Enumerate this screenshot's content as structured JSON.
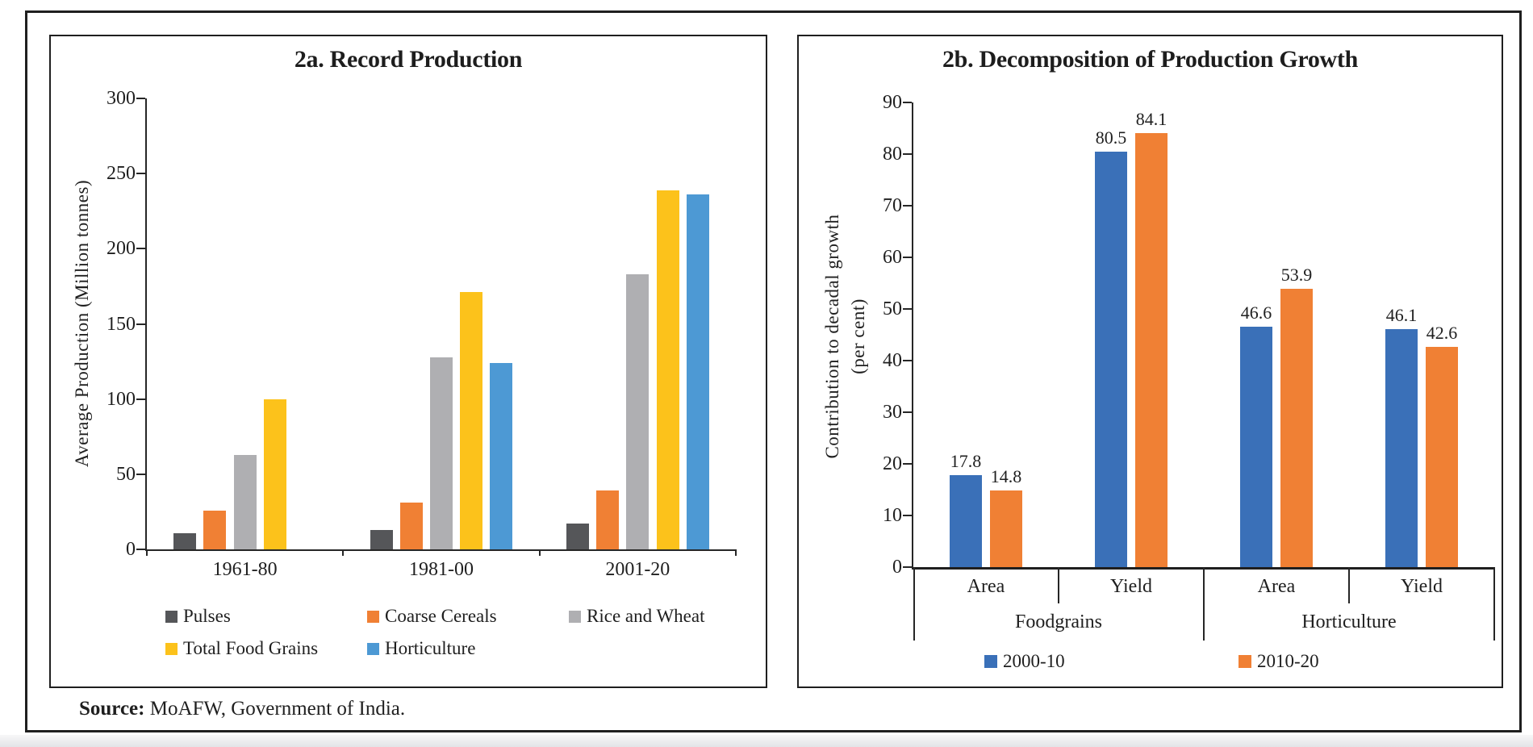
{
  "source": {
    "label": "Source:",
    "text": " MoAFW, Government of India."
  },
  "chart_data": [
    {
      "id": "2a",
      "type": "bar",
      "title": "2a. Record Production",
      "ylabel": "Average Production (Million tonnes)",
      "ylim": [
        0,
        300
      ],
      "ytick_step": 50,
      "yticks": [
        0,
        50,
        100,
        150,
        200,
        250,
        300
      ],
      "categories": [
        "1961-80",
        "1981-00",
        "2001-20"
      ],
      "series": [
        {
          "name": "Pulses",
          "color": "#555659",
          "values": [
            11,
            13,
            17
          ]
        },
        {
          "name": "Coarse Cereals",
          "color": "#F08034",
          "values": [
            26,
            31,
            39
          ]
        },
        {
          "name": "Rice and Wheat",
          "color": "#AFAFB2",
          "values": [
            63,
            128,
            183
          ]
        },
        {
          "name": "Total Food Grains",
          "color": "#FCC21B",
          "values": [
            100,
            171,
            239
          ]
        },
        {
          "name": "Horticulture",
          "color": "#4D99D4",
          "values": [
            null,
            124,
            236
          ]
        }
      ],
      "legend_position": "bottom",
      "grid": false,
      "data_labels": false
    },
    {
      "id": "2b",
      "type": "bar",
      "title": "2b. Decomposition of Production Growth",
      "ylabel": [
        "Contribution to decadal growth",
        "(per cent)"
      ],
      "ylim": [
        0,
        90
      ],
      "ytick_step": 10,
      "yticks": [
        0,
        10,
        20,
        30,
        40,
        50,
        60,
        70,
        80,
        90
      ],
      "categories": [
        "Area",
        "Yield",
        "Area",
        "Yield"
      ],
      "category_groups": [
        {
          "label": "Foodgrains",
          "span": [
            0,
            2
          ]
        },
        {
          "label": "Horticulture",
          "span": [
            2,
            4
          ]
        }
      ],
      "series": [
        {
          "name": "2000-10",
          "color": "#3A70B8",
          "values": [
            17.8,
            80.5,
            46.6,
            46.1
          ]
        },
        {
          "name": "2010-20",
          "color": "#F08034",
          "values": [
            14.8,
            84.1,
            53.9,
            42.6
          ]
        }
      ],
      "legend_position": "bottom",
      "grid": false,
      "data_labels": true
    }
  ]
}
